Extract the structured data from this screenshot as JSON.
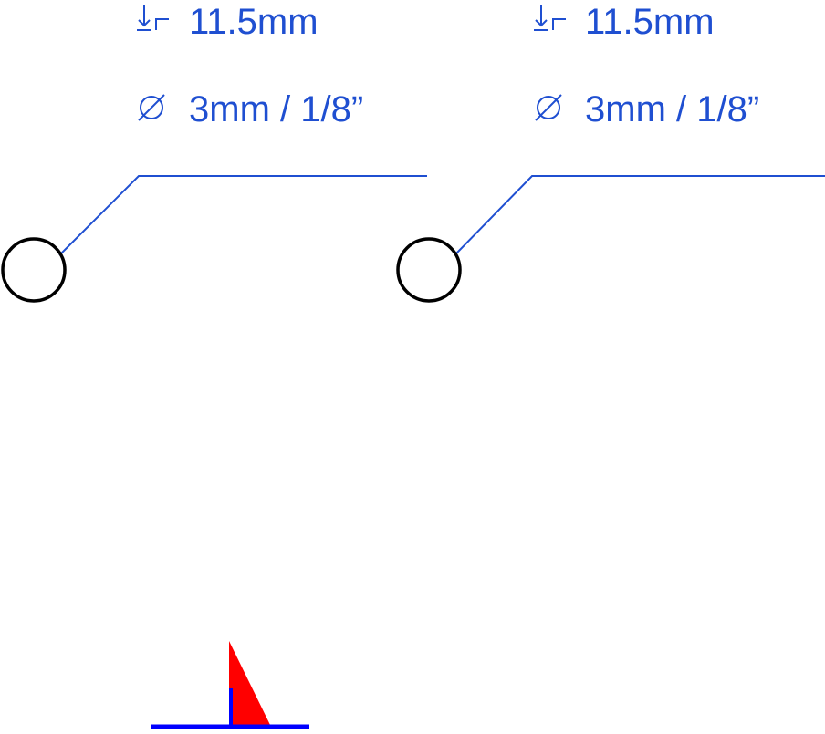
{
  "callouts": [
    {
      "depth": "11.5mm",
      "diameter": "3mm / 1/8”"
    },
    {
      "depth": "11.5mm",
      "diameter": "3mm / 1/8”"
    }
  ]
}
